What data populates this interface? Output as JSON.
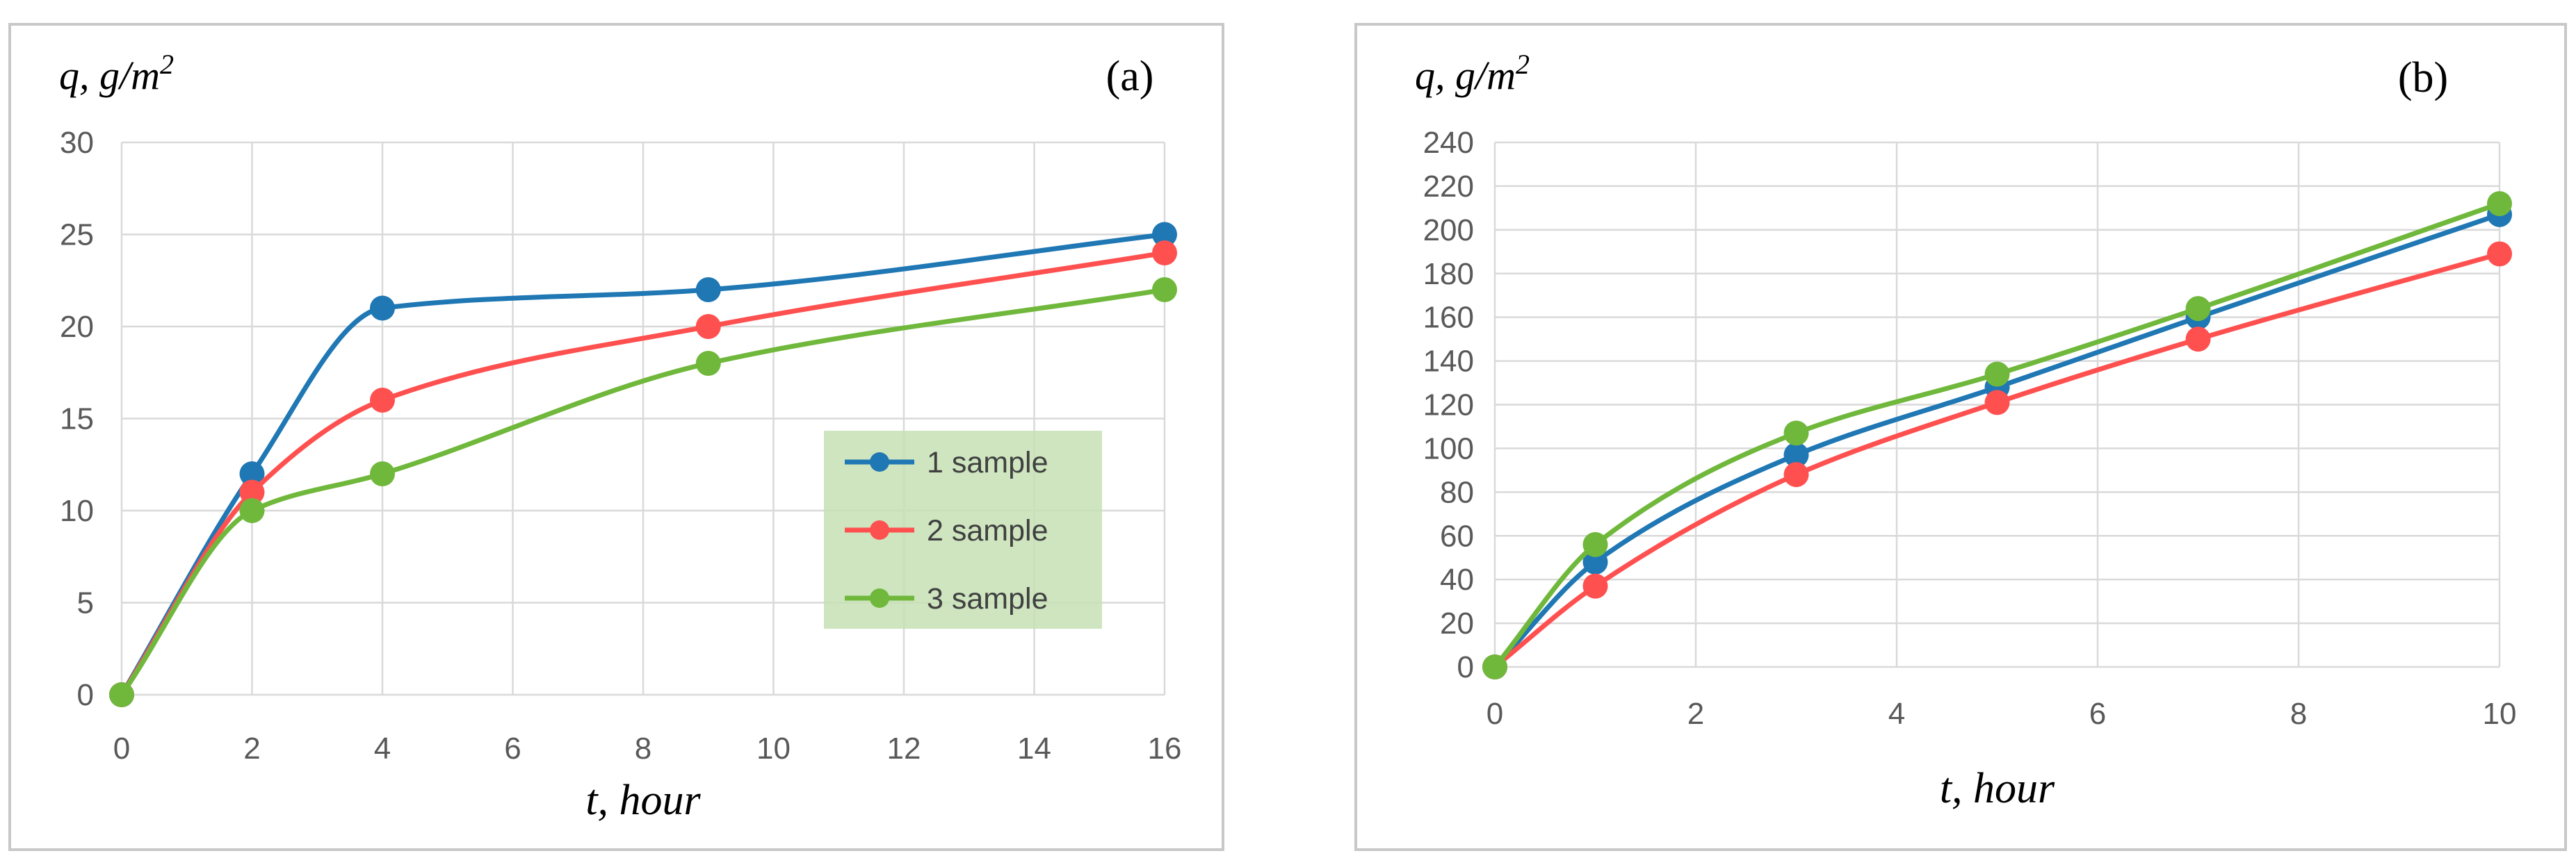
{
  "chart_data": [
    {
      "type": "line",
      "panel_label": "(a)",
      "ylabel": "q, g/m",
      "ylabel_sup": "2",
      "xlabel": "t, hour",
      "xlim": [
        0,
        16
      ],
      "ylim": [
        0,
        30
      ],
      "xticks": [
        0,
        2,
        4,
        6,
        8,
        10,
        12,
        14,
        16
      ],
      "yticks": [
        0,
        5,
        10,
        15,
        20,
        25,
        30
      ],
      "grid": true,
      "legend": "right-center",
      "series": [
        {
          "name": "1 sample",
          "color": "#1f77b4",
          "x": [
            0,
            2,
            4,
            9,
            16
          ],
          "y": [
            0,
            12,
            21,
            22,
            25
          ]
        },
        {
          "name": "2 sample",
          "color": "#ff5050",
          "x": [
            0,
            2,
            4,
            9,
            16
          ],
          "y": [
            0,
            11,
            16,
            20,
            24
          ]
        },
        {
          "name": "3 sample",
          "color": "#70b83c",
          "x": [
            0,
            2,
            4,
            9,
            16
          ],
          "y": [
            0,
            10,
            12,
            18,
            22
          ]
        }
      ]
    },
    {
      "type": "line",
      "panel_label": "(b)",
      "ylabel": "q, g/m",
      "ylabel_sup": "2",
      "xlabel": "t, hour",
      "xlim": [
        0,
        10
      ],
      "ylim": [
        0,
        240
      ],
      "xticks": [
        0,
        2,
        4,
        6,
        8,
        10
      ],
      "yticks": [
        0,
        20,
        40,
        60,
        80,
        100,
        120,
        140,
        160,
        180,
        200,
        220,
        240
      ],
      "grid": true,
      "series": [
        {
          "name": "1 sample",
          "color": "#1f77b4",
          "x": [
            0,
            1,
            3,
            5,
            7,
            10
          ],
          "y": [
            0,
            48,
            97,
            128,
            160,
            207
          ]
        },
        {
          "name": "2 sample",
          "color": "#ff5050",
          "x": [
            0,
            1,
            3,
            5,
            7,
            10
          ],
          "y": [
            0,
            37,
            88,
            121,
            150,
            189
          ]
        },
        {
          "name": "3 sample",
          "color": "#70b83c",
          "x": [
            0,
            1,
            3,
            5,
            7,
            10
          ],
          "y": [
            0,
            56,
            107,
            134,
            164,
            212
          ]
        }
      ]
    }
  ]
}
